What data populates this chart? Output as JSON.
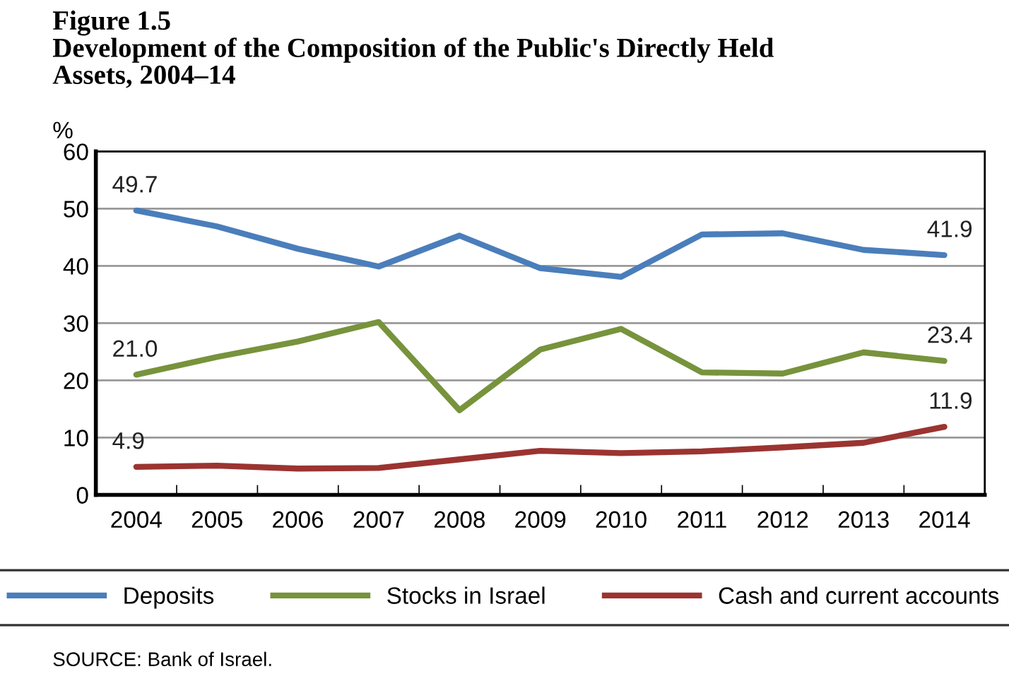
{
  "chart_data": {
    "type": "line",
    "title": "Figure 1.5\nDevelopment of the Composition of the Public's Directly Held\nAssets, 2004–14",
    "ylabel": "%",
    "categories": [
      "2004",
      "2005",
      "2006",
      "2007",
      "2008",
      "2009",
      "2010",
      "2011",
      "2012",
      "2013",
      "2014"
    ],
    "series": [
      {
        "name": "Deposits",
        "color": "#4a7ebb",
        "values": [
          49.7,
          46.9,
          43.0,
          39.9,
          45.3,
          39.6,
          38.1,
          45.5,
          45.7,
          42.8,
          41.9
        ],
        "value_labels": [
          "49.7",
          null,
          null,
          null,
          null,
          null,
          null,
          null,
          null,
          null,
          "41.9"
        ]
      },
      {
        "name": "Stocks in Israel",
        "color": "#77933c",
        "values": [
          21.0,
          24.1,
          26.8,
          30.2,
          14.8,
          25.4,
          29.0,
          21.4,
          21.2,
          24.9,
          23.4
        ],
        "value_labels": [
          "21.0",
          null,
          null,
          null,
          null,
          null,
          null,
          null,
          null,
          null,
          "23.4"
        ]
      },
      {
        "name": "Cash and current accounts",
        "color": "#9b3431",
        "values": [
          4.9,
          5.1,
          4.6,
          4.7,
          6.2,
          7.7,
          7.3,
          7.6,
          8.3,
          9.1,
          11.9
        ],
        "value_labels": [
          "4.9",
          null,
          null,
          null,
          null,
          null,
          null,
          null,
          null,
          null,
          "11.9"
        ]
      }
    ],
    "ylim": [
      0,
      60
    ],
    "yticks": [
      0,
      10,
      20,
      30,
      40,
      50,
      60
    ],
    "grid": "y",
    "legend": "bottom",
    "marker": "none",
    "line_style": "solid",
    "annotations": [
      "SOURCE: Bank of Israel."
    ]
  }
}
